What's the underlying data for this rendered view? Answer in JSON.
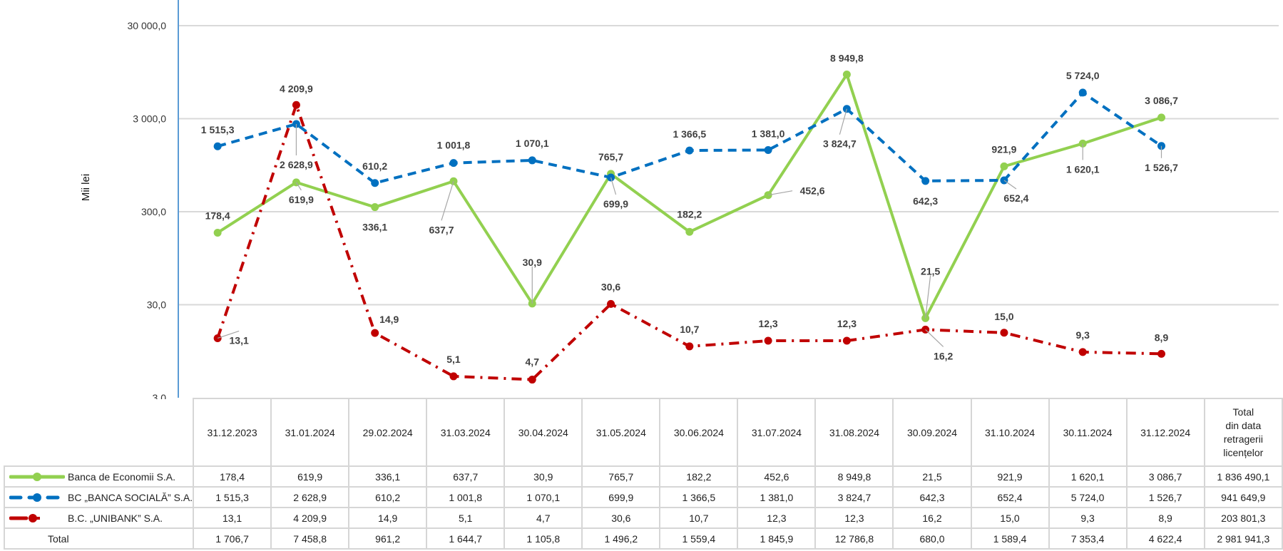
{
  "chart_data": {
    "type": "line",
    "title": "",
    "ylabel": "Mii lei",
    "xlabel": "",
    "yscale": "log",
    "ylim": [
      3,
      30000
    ],
    "yticks": [
      3,
      30,
      300,
      3000,
      30000
    ],
    "ytick_labels": [
      "3,0",
      "30,0",
      "300,0",
      "3 000,0",
      "30 000,0"
    ],
    "grid": true,
    "legend": "data-table-left",
    "categories": [
      "31.12.2023",
      "31.01.2024",
      "29.02.2024",
      "31.03.2024",
      "30.04.2024",
      "31.05.2024",
      "30.06.2024",
      "31.07.2024",
      "31.08.2024",
      "30.09.2024",
      "31.10.2024",
      "30.11.2024",
      "31.12.2024"
    ],
    "series": [
      {
        "name": "Banca de Economii S.A.",
        "color": "#92D050",
        "style": "solid",
        "values": [
          178.4,
          619.9,
          336.1,
          637.7,
          30.9,
          765.7,
          182.2,
          452.6,
          8949.8,
          21.5,
          921.9,
          1620.1,
          3086.7
        ]
      },
      {
        "name": "BC „BANCA SOCIALĂ” S.A.",
        "color": "#0070C0",
        "style": "dash",
        "values": [
          1515.3,
          2628.9,
          610.2,
          1001.8,
          1070.1,
          699.9,
          1366.5,
          1381.0,
          3824.7,
          642.3,
          652.4,
          5724.0,
          1526.7
        ]
      },
      {
        "name": "B.C. „UNIBANK” S.A.",
        "color": "#C00000",
        "style": "dash-dot",
        "values": [
          13.1,
          4209.9,
          14.9,
          5.1,
          4.7,
          30.6,
          10.7,
          12.3,
          12.3,
          16.2,
          15.0,
          9.3,
          8.9
        ]
      }
    ]
  },
  "table": {
    "header": [
      "31.12.2023",
      "31.01.2024",
      "29.02.2024",
      "31.03.2024",
      "30.04.2024",
      "31.05.2024",
      "30.06.2024",
      "31.07.2024",
      "31.08.2024",
      "30.09.2024",
      "31.10.2024",
      "30.11.2024",
      "31.12.2024"
    ],
    "total_header": [
      "Total",
      "din data",
      "retragerii",
      "licențelor"
    ],
    "rows": [
      {
        "label": "Banca de Economii S.A.",
        "cells": [
          "178,4",
          "619,9",
          "336,1",
          "637,7",
          "30,9",
          "765,7",
          "182,2",
          "452,6",
          "8 949,8",
          "21,5",
          "921,9",
          "1 620,1",
          "3 086,7",
          "1 836 490,1"
        ]
      },
      {
        "label": "BC „BANCA SOCIALĂ” S.A.",
        "cells": [
          "1 515,3",
          "2 628,9",
          "610,2",
          "1 001,8",
          "1 070,1",
          "699,9",
          "1 366,5",
          "1 381,0",
          "3 824,7",
          "642,3",
          "652,4",
          "5 724,0",
          "1 526,7",
          "941 649,9"
        ]
      },
      {
        "label": "B.C. „UNIBANK” S.A.",
        "cells": [
          "13,1",
          "4 209,9",
          "14,9",
          "5,1",
          "4,7",
          "30,6",
          "10,7",
          "12,3",
          "12,3",
          "16,2",
          "15,0",
          "9,3",
          "8,9",
          "203 801,3"
        ]
      },
      {
        "label": "Total",
        "cells": [
          "1 706,7",
          "7 458,8",
          "961,2",
          "1 644,7",
          "1 105,8",
          "1 496,2",
          "1 559,4",
          "1 845,9",
          "12 786,8",
          "680,0",
          "1 589,4",
          "7 353,4",
          "4 622,4",
          "2 981 941,3"
        ]
      }
    ]
  }
}
